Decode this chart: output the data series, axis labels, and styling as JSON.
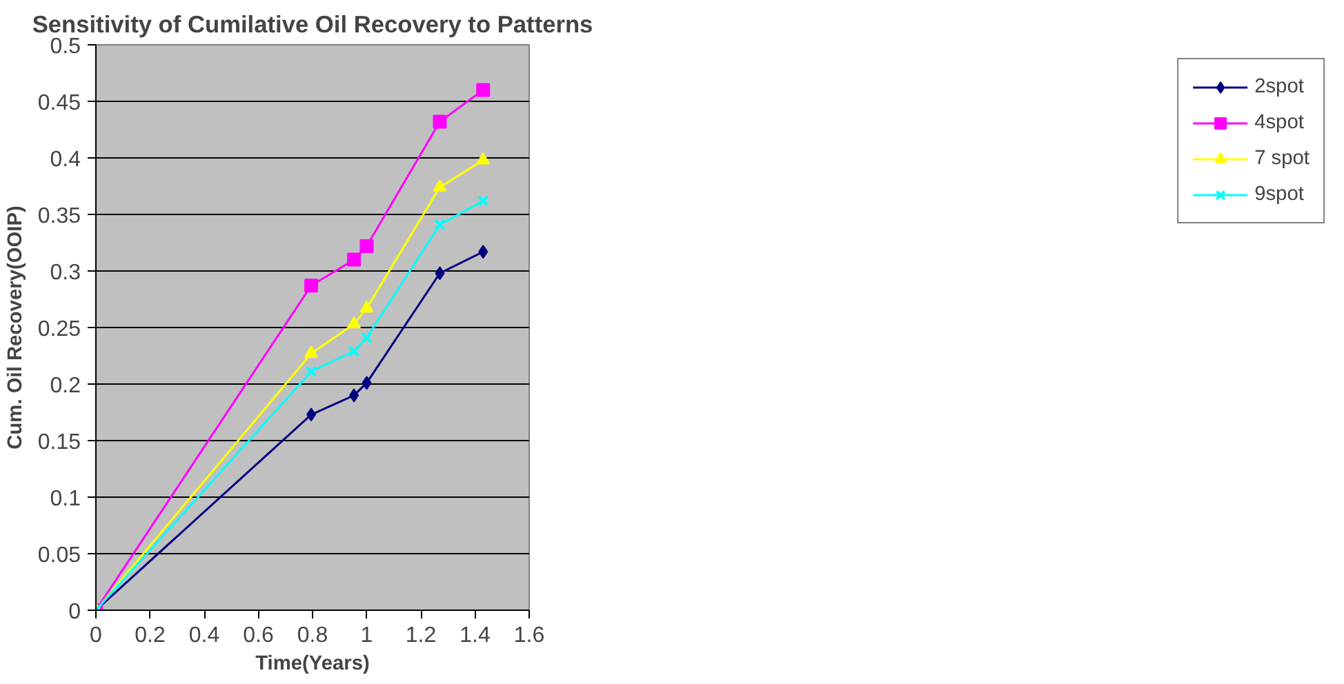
{
  "chart_data": {
    "type": "line",
    "title": "Sensitivity of Cumilative Oil Recovery to Patterns",
    "xlabel": "Time(Years)",
    "ylabel": "Cum. Oil Recovery(OOIP)",
    "x": [
      0,
      0.795,
      0.953,
      1.0,
      1.27,
      1.43
    ],
    "series": [
      {
        "name": "2spot",
        "color": "#000080",
        "marker": "diamond",
        "values": [
          0,
          0.173,
          0.19,
          0.201,
          0.298,
          0.317
        ]
      },
      {
        "name": "4spot",
        "color": "#ff00ff",
        "marker": "square",
        "values": [
          0,
          0.287,
          0.31,
          0.322,
          0.432,
          0.46
        ]
      },
      {
        "name": "7 spot",
        "color": "#ffff00",
        "marker": "triangle",
        "values": [
          0,
          0.227,
          0.253,
          0.267,
          0.374,
          0.398
        ]
      },
      {
        "name": "9spot",
        "color": "#00ffff",
        "marker": "cross",
        "values": [
          0,
          0.211,
          0.229,
          0.241,
          0.341,
          0.362
        ]
      }
    ],
    "xlim": [
      0,
      1.6
    ],
    "xticks": [
      0,
      0.2,
      0.4,
      0.6,
      0.8,
      1,
      1.2,
      1.4,
      1.6
    ],
    "ylim": [
      0,
      0.5
    ],
    "yticks": [
      0,
      0.05,
      0.1,
      0.15,
      0.2,
      0.25,
      0.3,
      0.35,
      0.4,
      0.45,
      0.5
    ],
    "grid": "y",
    "legend": "right",
    "line_style": "solid"
  }
}
